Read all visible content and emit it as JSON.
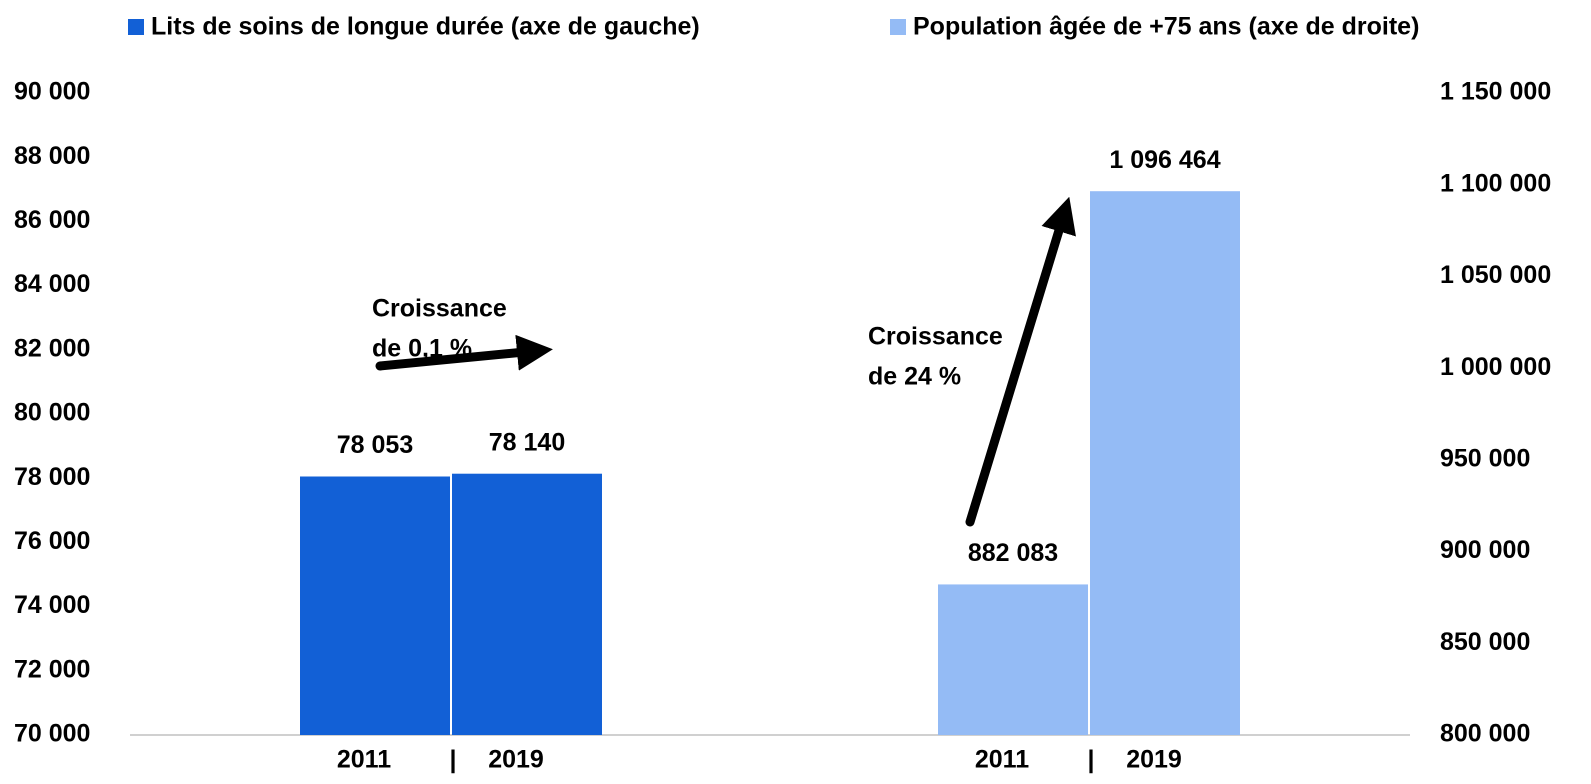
{
  "chart_data": {
    "type": "bar",
    "categories": [
      "2011",
      "2019"
    ],
    "category_separator": "|",
    "series": [
      {
        "name": "Lits de soins de longue durée (axe de gauche)",
        "color": "#1260d6",
        "values": [
          78053,
          78140
        ],
        "value_labels": [
          "78 053",
          "78 140"
        ]
      },
      {
        "name": "Population âgée de +75 ans (axe de droite)",
        "color": "#94bbf5",
        "axis": "y2",
        "values": [
          882083,
          1096464
        ],
        "value_labels": [
          "882 083",
          "1 096 464"
        ]
      }
    ],
    "annotations": [
      [
        "Croissance",
        "de 0,1 %"
      ],
      [
        "Croissance",
        "de 24 %"
      ]
    ],
    "ylim": [
      70000,
      90000
    ],
    "yticks": [
      {
        "value": 70000,
        "label": "70 000"
      },
      {
        "value": 72000,
        "label": "72 000"
      },
      {
        "value": 74000,
        "label": "74 000"
      },
      {
        "value": 76000,
        "label": "76 000"
      },
      {
        "value": 78000,
        "label": "78 000"
      },
      {
        "value": 80000,
        "label": "80 000"
      },
      {
        "value": 82000,
        "label": "82 000"
      },
      {
        "value": 84000,
        "label": "84 000"
      },
      {
        "value": 86000,
        "label": "86 000"
      },
      {
        "value": 88000,
        "label": "88 000"
      },
      {
        "value": 90000,
        "label": "90 000"
      }
    ],
    "y2lim": [
      800000,
      1150000
    ],
    "y2ticks": [
      {
        "value": 800000,
        "label": "800 000"
      },
      {
        "value": 850000,
        "label": "850 000"
      },
      {
        "value": 900000,
        "label": "900 000"
      },
      {
        "value": 950000,
        "label": "950 000"
      },
      {
        "value": 1000000,
        "label": "1 000 000"
      },
      {
        "value": 1050000,
        "label": "1 050 000"
      },
      {
        "value": 1100000,
        "label": "1 100 000"
      },
      {
        "value": 1150000,
        "label": "1 150 000"
      }
    ],
    "grid": false,
    "legend": "top"
  }
}
